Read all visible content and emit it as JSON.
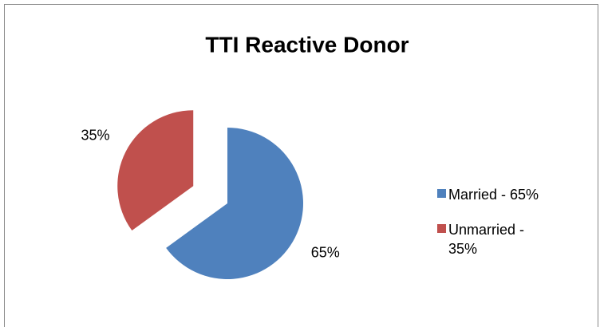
{
  "chart_data": {
    "type": "pie",
    "title": "TTI Reactive Donor",
    "categories": [
      "Married - 65%",
      "Unmarried - 35%"
    ],
    "values": [
      65,
      35
    ],
    "value_labels": [
      "65%",
      "35%"
    ],
    "colors": [
      "#4f81bd",
      "#c0504d"
    ],
    "exploded": [
      false,
      true
    ]
  }
}
